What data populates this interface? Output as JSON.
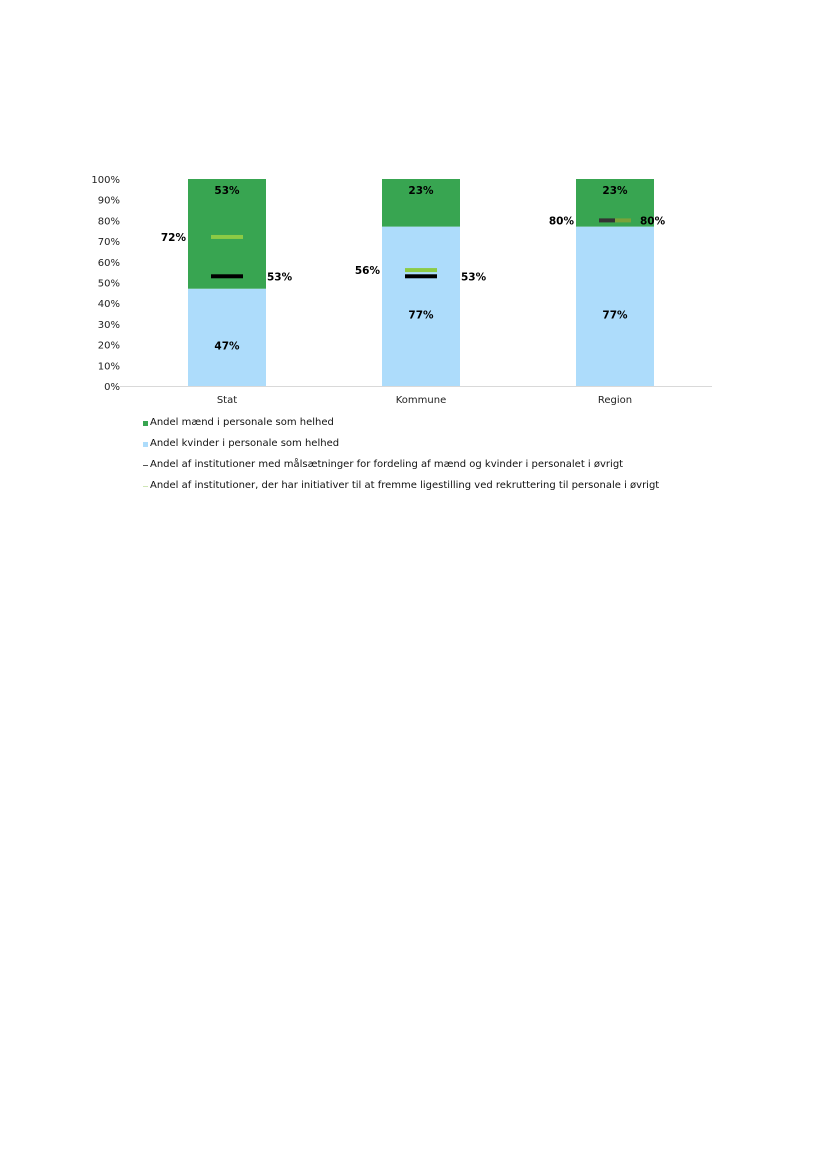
{
  "chart_data": {
    "type": "bar",
    "stacked": true,
    "categories": [
      "Stat",
      "Kommune",
      "Region"
    ],
    "ylim": [
      0,
      100
    ],
    "yticks": [
      "0%",
      "10%",
      "20%",
      "30%",
      "40%",
      "50%",
      "60%",
      "70%",
      "80%",
      "90%",
      "100%"
    ],
    "series": [
      {
        "name": "Andel kvinder i personale som helhed",
        "kind": "bar",
        "color": "#ADDCFB",
        "values": [
          47,
          77,
          77
        ],
        "labels": [
          "47%",
          "77%",
          "77%"
        ]
      },
      {
        "name": "Andel mænd i personale som helhed",
        "kind": "bar",
        "color": "#38A551",
        "values": [
          53,
          23,
          23
        ],
        "labels": [
          "53%",
          "23%",
          "23%"
        ]
      },
      {
        "name": "Andel af institutioner med målsætninger for fordeling af mænd og kvinder i personalet i øvrigt",
        "kind": "marker",
        "color": "#000000",
        "values": [
          53,
          53,
          80
        ],
        "labels": [
          "53%",
          "53%",
          "80%"
        ]
      },
      {
        "name": "Andel af institutioner, der har initiativer til at fremme ligestilling ved rekruttering til personale i øvrigt",
        "kind": "marker",
        "color": "#8CCB45",
        "values": [
          72,
          56,
          80
        ],
        "labels": [
          "72%",
          "56%",
          "80%"
        ]
      }
    ],
    "legend_position": "bottom-left"
  }
}
